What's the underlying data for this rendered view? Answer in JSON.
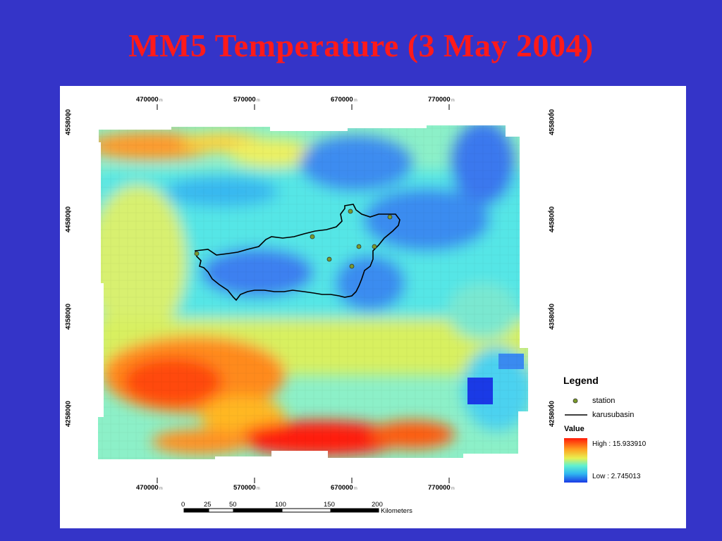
{
  "slide": {
    "title": "MM5  Temperature (3 May 2004)"
  },
  "map": {
    "x_ticks": [
      "470000",
      "570000",
      "670000",
      "770000"
    ],
    "x_tick_unit": "m",
    "y_ticks": [
      "4558000",
      "4458000",
      "4358000",
      "4258000"
    ],
    "colors": {
      "background": "#3434c8",
      "title": "#ff1a1a",
      "basin_line": "#000000",
      "station": "#7a9a2a"
    }
  },
  "legend": {
    "title": "Legend",
    "station_label": "station",
    "basin_label": "karusubasin",
    "value_title": "Value",
    "high_label": "High : 15.933910",
    "low_label": "Low : 2.745013"
  },
  "scalebar": {
    "ticks": [
      "0",
      "25",
      "50",
      "100",
      "150",
      "200"
    ],
    "unit": "Kilometers"
  }
}
